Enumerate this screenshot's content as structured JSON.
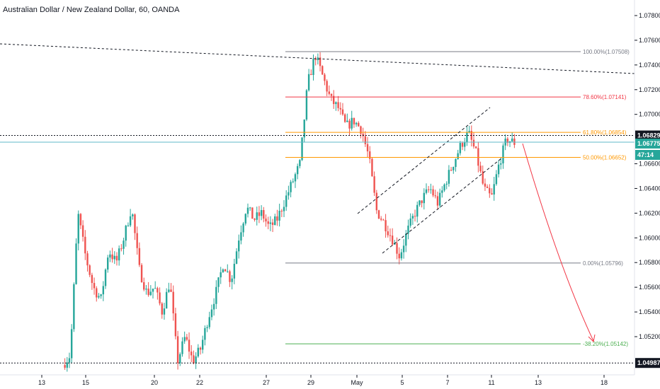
{
  "chart_data": {
    "type": "candlestick",
    "title": "Australian Dollar / New Zealand Dollar, 60, OANDA",
    "ylim": [
      1.0492,
      1.079
    ],
    "y_ticks": [
      "1.07800",
      "1.07600",
      "1.07400",
      "1.07200",
      "1.07000",
      "1.06600",
      "1.06400",
      "1.06200",
      "1.06000",
      "1.05800",
      "1.05600",
      "1.05400",
      "1.05200"
    ],
    "x_ticks": [
      "13",
      "15",
      "20",
      "22",
      "27",
      "29",
      "May",
      "5",
      "7",
      "11",
      "13",
      "18"
    ],
    "colors": {
      "up": "#26a69a",
      "down": "#ef5350",
      "grid": "#ffffff",
      "axis": "#131722"
    },
    "fib_levels": [
      {
        "label": "100.00%(1.07508)",
        "value": 1.07508,
        "color": "#787b86"
      },
      {
        "label": "78.60%(1.07141)",
        "value": 1.07141,
        "color": "#f23645"
      },
      {
        "label": "61.80%(1.06854)",
        "value": 1.06854,
        "color": "#ff9800"
      },
      {
        "label": "50.00%(1.06652)",
        "value": 1.06652,
        "color": "#ff9800"
      },
      {
        "label": "0.00%(1.05796)",
        "value": 1.05796,
        "color": "#787b86"
      },
      {
        "label": "-38.20%(1.05142)",
        "value": 1.05142,
        "color": "#4caf50"
      }
    ],
    "horizontal_lines": [
      {
        "value": 1.06829,
        "style": "dotted",
        "color": "#131722"
      },
      {
        "value": 1.06775,
        "style": "solid",
        "color": "#5fb8c8"
      },
      {
        "value": 1.04987,
        "style": "dotted",
        "color": "#131722"
      }
    ],
    "badges": [
      {
        "text": "1.06829",
        "value": 1.06829,
        "bg": "#131722",
        "fg": "#ffffff"
      },
      {
        "text": "1.06775",
        "value": 1.06775,
        "bg": "#26a69a",
        "fg": "#ffffff"
      },
      {
        "text": "47:14",
        "value": 1.0666,
        "bg": "#26a69a",
        "fg": "#ffffff"
      },
      {
        "text": "1.04987",
        "value": 1.04987,
        "bg": "#131722",
        "fg": "#ffffff"
      }
    ],
    "price_path": [
      [
        1.0497,
        1.0505,
        1.062,
        1.0585,
        1.056,
        1.055,
        1.059,
        1.058,
        1.06,
        1.0625,
        1.0575,
        1.0555,
        1.056,
        1.054,
        1.0565,
        1.05,
        1.052,
        1.05,
        1.051,
        1.0535,
        1.0555,
        1.058,
        1.0565,
        1.06,
        1.0625,
        1.0615,
        1.062,
        1.0608,
        1.0615,
        1.063,
        1.0645,
        1.066,
        1.0725,
        1.0748,
        1.073,
        1.0712,
        1.0705,
        1.069,
        1.0695,
        1.0688,
        1.0665,
        1.0622,
        1.0612,
        1.06,
        1.0585,
        1.0605,
        1.062,
        1.0632,
        1.064,
        1.0628,
        1.0645,
        1.066,
        1.0675,
        1.0685,
        1.0668,
        1.064,
        1.0632,
        1.066,
        1.068,
        1.0677
      ]
    ]
  }
}
